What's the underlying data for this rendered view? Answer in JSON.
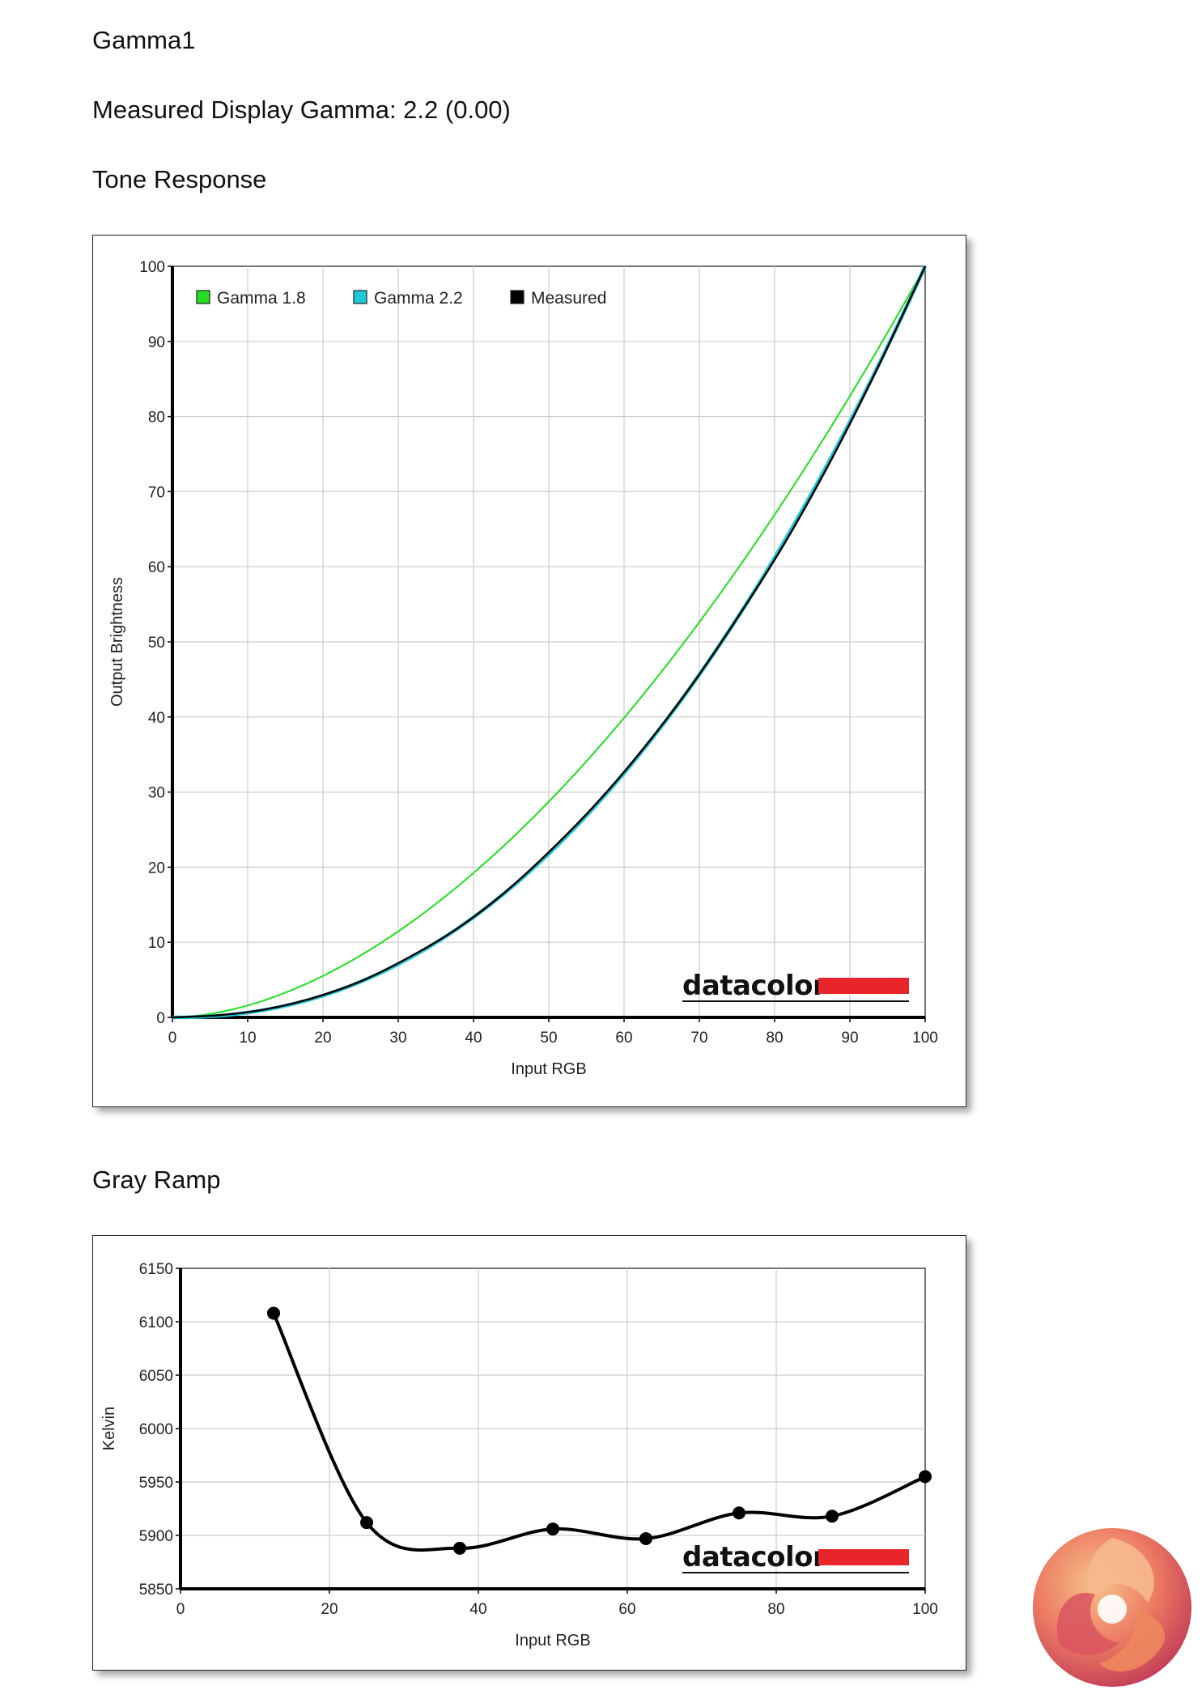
{
  "page": {
    "title": "Gamma1",
    "measured": "Measured Display Gamma: 2.2 (0.00)",
    "tone_heading": "Tone Response",
    "gray_heading": "Gray Ramp"
  },
  "colors": {
    "gamma18": "#22dd22",
    "gamma22": "#1ec8d8",
    "measured": "#000000",
    "brand_bar": "#e8262a",
    "grid": "#cccccc"
  },
  "chart_data": [
    {
      "type": "line",
      "title": "Tone Response",
      "xlabel": "Input RGB",
      "ylabel": "Output Brightness",
      "xlim": [
        0,
        100
      ],
      "ylim": [
        0,
        100
      ],
      "xticks": [
        0,
        10,
        20,
        30,
        40,
        50,
        60,
        70,
        80,
        90,
        100
      ],
      "yticks": [
        0,
        10,
        20,
        30,
        40,
        50,
        60,
        70,
        80,
        90,
        100
      ],
      "grid": true,
      "legend_position": "top-left",
      "brand": "datacolor",
      "series": [
        {
          "name": "Gamma 1.8",
          "color": "#22dd22",
          "gamma": 1.8
        },
        {
          "name": "Gamma 2.2",
          "color": "#1ec8d8",
          "gamma": 2.2
        },
        {
          "name": "Measured",
          "color": "#000000",
          "x": [
            0,
            6.25,
            12.5,
            18.75,
            25,
            31.25,
            37.5,
            43.75,
            50,
            56.25,
            62.5,
            68.75,
            75,
            81.25,
            87.5,
            93.75,
            100
          ],
          "y": [
            0,
            0.3,
            1.1,
            2.6,
            4.8,
            7.9,
            11.6,
            16.3,
            22.0,
            28.4,
            35.7,
            43.9,
            53.1,
            63.0,
            74.2,
            86.6,
            100
          ]
        }
      ]
    },
    {
      "type": "line",
      "title": "Gray Ramp",
      "xlabel": "Input RGB",
      "ylabel": "Kelvin",
      "xlim": [
        0,
        100
      ],
      "ylim": [
        5850,
        6150
      ],
      "xticks": [
        0,
        20,
        40,
        60,
        80,
        100
      ],
      "yticks": [
        5850,
        5900,
        5950,
        6000,
        6050,
        6100,
        6150
      ],
      "grid": true,
      "brand": "datacolor",
      "series": [
        {
          "name": "",
          "color": "#000000",
          "x": [
            12.5,
            25,
            37.5,
            50,
            62.5,
            75,
            87.5,
            100
          ],
          "y": [
            6108,
            5912,
            5888,
            5906,
            5897,
            5921,
            5918,
            5955
          ]
        }
      ]
    }
  ]
}
